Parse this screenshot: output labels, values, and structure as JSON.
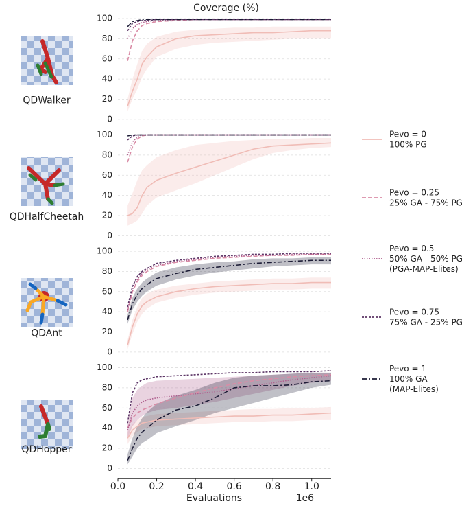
{
  "chart_data": [
    {
      "type": "line",
      "title": "Coverage (%)",
      "label": "QDWalker",
      "legend": "right",
      "x": [
        0.05,
        0.075,
        0.1,
        0.125,
        0.15,
        0.2,
        0.3,
        0.4,
        0.5,
        0.6,
        0.7,
        0.8,
        0.9,
        1.0,
        1.1
      ],
      "xlim": [
        0,
        1.1
      ],
      "ylim": [
        -6,
        105
      ],
      "yticks": [
        0,
        20,
        40,
        60,
        80,
        100
      ],
      "grid": true,
      "series": [
        {
          "name": "Pevo = 0\n100% PG",
          "color": "#f0bcb6",
          "dash": "solid",
          "values": [
            13,
            28,
            40,
            55,
            62,
            72,
            80,
            83,
            84,
            85,
            86,
            86,
            87,
            88,
            88
          ],
          "lower": [
            8,
            20,
            30,
            42,
            50,
            62,
            70,
            74,
            76,
            77,
            78,
            79,
            80,
            80,
            80
          ],
          "upper": [
            20,
            40,
            55,
            68,
            75,
            82,
            87,
            89,
            90,
            91,
            91,
            92,
            92,
            92,
            92
          ]
        },
        {
          "name": "Pevo = 0.25\n25% GA - 75% PG",
          "color": "#d98ca6",
          "dash": "dashed",
          "values": [
            58,
            78,
            88,
            93,
            95,
            97,
            98,
            99,
            99,
            99,
            99,
            99,
            99,
            99,
            99
          ]
        },
        {
          "name": "Pevo = 0.5\n50% GA - 50% PG\n(PGA-MAP-Elites)",
          "color": "#b0608f",
          "dash": "dotted",
          "values": [
            80,
            90,
            94,
            96,
            97,
            98,
            99,
            99,
            99,
            99,
            99,
            99,
            99,
            99,
            99
          ]
        },
        {
          "name": "Pevo = 0.75\n75% GA - 25% PG",
          "color": "#5c3566",
          "dash": "densedash",
          "values": [
            88,
            95,
            97,
            98,
            98,
            99,
            99,
            99,
            99,
            99,
            99,
            99,
            99,
            99,
            99
          ]
        },
        {
          "name": "Pevo = 1\n100% GA\n(MAP-Elites)",
          "color": "#1c1c36",
          "dash": "dashdot",
          "values": [
            92,
            97,
            98,
            99,
            99,
            99,
            99,
            99,
            99,
            99,
            99,
            99,
            99,
            99,
            99
          ]
        }
      ]
    },
    {
      "type": "line",
      "label": "QDHalfCheetah",
      "x": [
        0.05,
        0.075,
        0.1,
        0.125,
        0.15,
        0.2,
        0.3,
        0.4,
        0.5,
        0.6,
        0.7,
        0.8,
        0.9,
        1.0,
        1.1
      ],
      "xlim": [
        0,
        1.1
      ],
      "ylim": [
        -6,
        105
      ],
      "yticks": [
        0,
        20,
        40,
        60,
        80,
        100
      ],
      "grid": true,
      "series": [
        {
          "color": "#f0bcb6",
          "dash": "solid",
          "values": [
            20,
            22,
            28,
            40,
            48,
            55,
            62,
            68,
            74,
            80,
            86,
            89,
            90,
            91,
            92
          ],
          "lower": [
            10,
            12,
            15,
            22,
            30,
            38,
            45,
            52,
            60,
            68,
            76,
            82,
            85,
            87,
            88
          ],
          "upper": [
            30,
            42,
            55,
            65,
            70,
            78,
            85,
            90,
            92,
            94,
            95,
            96,
            96,
            97,
            97
          ]
        },
        {
          "color": "#d98ca6",
          "dash": "dashed",
          "values": [
            73,
            88,
            96,
            99,
            100,
            100,
            100,
            100,
            100,
            100,
            100,
            100,
            100,
            100,
            100
          ]
        },
        {
          "color": "#b0608f",
          "dash": "dotted",
          "values": [
            80,
            93,
            98,
            100,
            100,
            100,
            100,
            100,
            100,
            100,
            100,
            100,
            100,
            100,
            100
          ]
        },
        {
          "color": "#5c3566",
          "dash": "densedash",
          "values": [
            95,
            99,
            100,
            100,
            100,
            100,
            100,
            100,
            100,
            100,
            100,
            100,
            100,
            100,
            100
          ]
        },
        {
          "color": "#1c1c36",
          "dash": "dashdot",
          "values": [
            99,
            100,
            100,
            100,
            100,
            100,
            100,
            100,
            100,
            100,
            100,
            100,
            100,
            100,
            100
          ]
        }
      ]
    },
    {
      "type": "line",
      "label": "QDAnt",
      "x": [
        0.05,
        0.075,
        0.1,
        0.125,
        0.15,
        0.2,
        0.3,
        0.4,
        0.5,
        0.6,
        0.7,
        0.8,
        0.9,
        1.0,
        1.1
      ],
      "xlim": [
        0,
        1.1
      ],
      "ylim": [
        -6,
        105
      ],
      "yticks": [
        0,
        20,
        40,
        60,
        80,
        100
      ],
      "grid": true,
      "series": [
        {
          "color": "#f0bcb6",
          "dash": "solid",
          "values": [
            7,
            25,
            38,
            46,
            50,
            55,
            60,
            63,
            65,
            66,
            67,
            68,
            68,
            69,
            69
          ],
          "lower": [
            3,
            18,
            30,
            38,
            43,
            49,
            54,
            57,
            59,
            60,
            61,
            62,
            62,
            63,
            63
          ],
          "upper": [
            12,
            32,
            45,
            54,
            58,
            62,
            66,
            68,
            70,
            71,
            72,
            73,
            73,
            74,
            74
          ]
        },
        {
          "color": "#d98ca6",
          "dash": "dashed",
          "values": [
            40,
            60,
            70,
            76,
            80,
            85,
            89,
            91,
            93,
            94,
            95,
            96,
            96,
            97,
            97
          ]
        },
        {
          "color": "#b0608f",
          "dash": "dotted",
          "values": [
            42,
            62,
            72,
            78,
            82,
            86,
            90,
            92,
            94,
            95,
            96,
            96,
            97,
            97,
            97
          ]
        },
        {
          "color": "#5c3566",
          "dash": "densedash",
          "values": [
            45,
            65,
            75,
            80,
            83,
            88,
            91,
            93,
            95,
            96,
            97,
            97,
            98,
            98,
            98
          ]
        },
        {
          "color": "#1c1c36",
          "dash": "dashdot",
          "values": [
            32,
            48,
            57,
            63,
            67,
            73,
            78,
            82,
            84,
            86,
            88,
            89,
            90,
            91,
            91
          ],
          "lower": [
            28,
            42,
            50,
            56,
            60,
            66,
            72,
            76,
            79,
            81,
            83,
            85,
            86,
            87,
            87
          ],
          "upper": [
            37,
            54,
            63,
            69,
            73,
            79,
            84,
            87,
            89,
            90,
            92,
            93,
            93,
            94,
            94
          ]
        }
      ]
    },
    {
      "type": "line",
      "label": "QDHopper",
      "xlabel": "Evaluations",
      "x_offset_label": "1e6",
      "x": [
        0.05,
        0.075,
        0.1,
        0.125,
        0.15,
        0.2,
        0.3,
        0.4,
        0.5,
        0.6,
        0.7,
        0.8,
        0.9,
        1.0,
        1.1
      ],
      "xlim": [
        0,
        1.1
      ],
      "ylim": [
        -6,
        105
      ],
      "yticks": [
        0,
        20,
        40,
        60,
        80,
        100
      ],
      "grid": true,
      "xticks": [
        {
          "value": 0,
          "label": "0.0"
        },
        0.2,
        0.4,
        0.6,
        0.8,
        {
          "value": 1,
          "label": "1.0"
        }
      ],
      "series": [
        {
          "color": "#f0bcb6",
          "dash": "solid",
          "values": [
            30,
            38,
            42,
            45,
            46,
            48,
            49,
            50,
            51,
            52,
            52,
            53,
            53,
            54,
            55
          ],
          "lower": [
            24,
            32,
            36,
            39,
            40,
            42,
            43,
            44,
            45,
            46,
            46,
            47,
            47,
            48,
            48
          ],
          "upper": [
            36,
            44,
            48,
            51,
            52,
            54,
            55,
            56,
            57,
            58,
            59,
            59,
            60,
            60,
            61
          ]
        },
        {
          "color": "#d98ca6",
          "dash": "dashed",
          "values": [
            40,
            50,
            55,
            58,
            60,
            64,
            70,
            75,
            80,
            84,
            87,
            89,
            91,
            92,
            93
          ]
        },
        {
          "color": "#b0608f",
          "dash": "dotted",
          "values": [
            38,
            55,
            62,
            66,
            68,
            70,
            72,
            74,
            76,
            79,
            82,
            85,
            88,
            90,
            92
          ],
          "lower": [
            30,
            42,
            48,
            52,
            55,
            58,
            60,
            63,
            66,
            70,
            74,
            78,
            82,
            85,
            87
          ],
          "upper": [
            48,
            70,
            78,
            82,
            85,
            87,
            88,
            89,
            90,
            91,
            92,
            93,
            94,
            95,
            95
          ]
        },
        {
          "color": "#5c3566",
          "dash": "densedash",
          "values": [
            45,
            75,
            85,
            88,
            89,
            91,
            92,
            93,
            94,
            95,
            95,
            96,
            96,
            96,
            97
          ]
        },
        {
          "color": "#1c1c36",
          "dash": "dashdot",
          "values": [
            8,
            20,
            30,
            36,
            40,
            48,
            58,
            62,
            70,
            80,
            82,
            82,
            83,
            86,
            87
          ],
          "lower": [
            4,
            12,
            20,
            25,
            28,
            35,
            42,
            48,
            55,
            60,
            65,
            70,
            75,
            80,
            83
          ],
          "upper": [
            14,
            30,
            42,
            50,
            56,
            64,
            72,
            78,
            85,
            90,
            92,
            93,
            94,
            95,
            95
          ]
        }
      ]
    }
  ]
}
